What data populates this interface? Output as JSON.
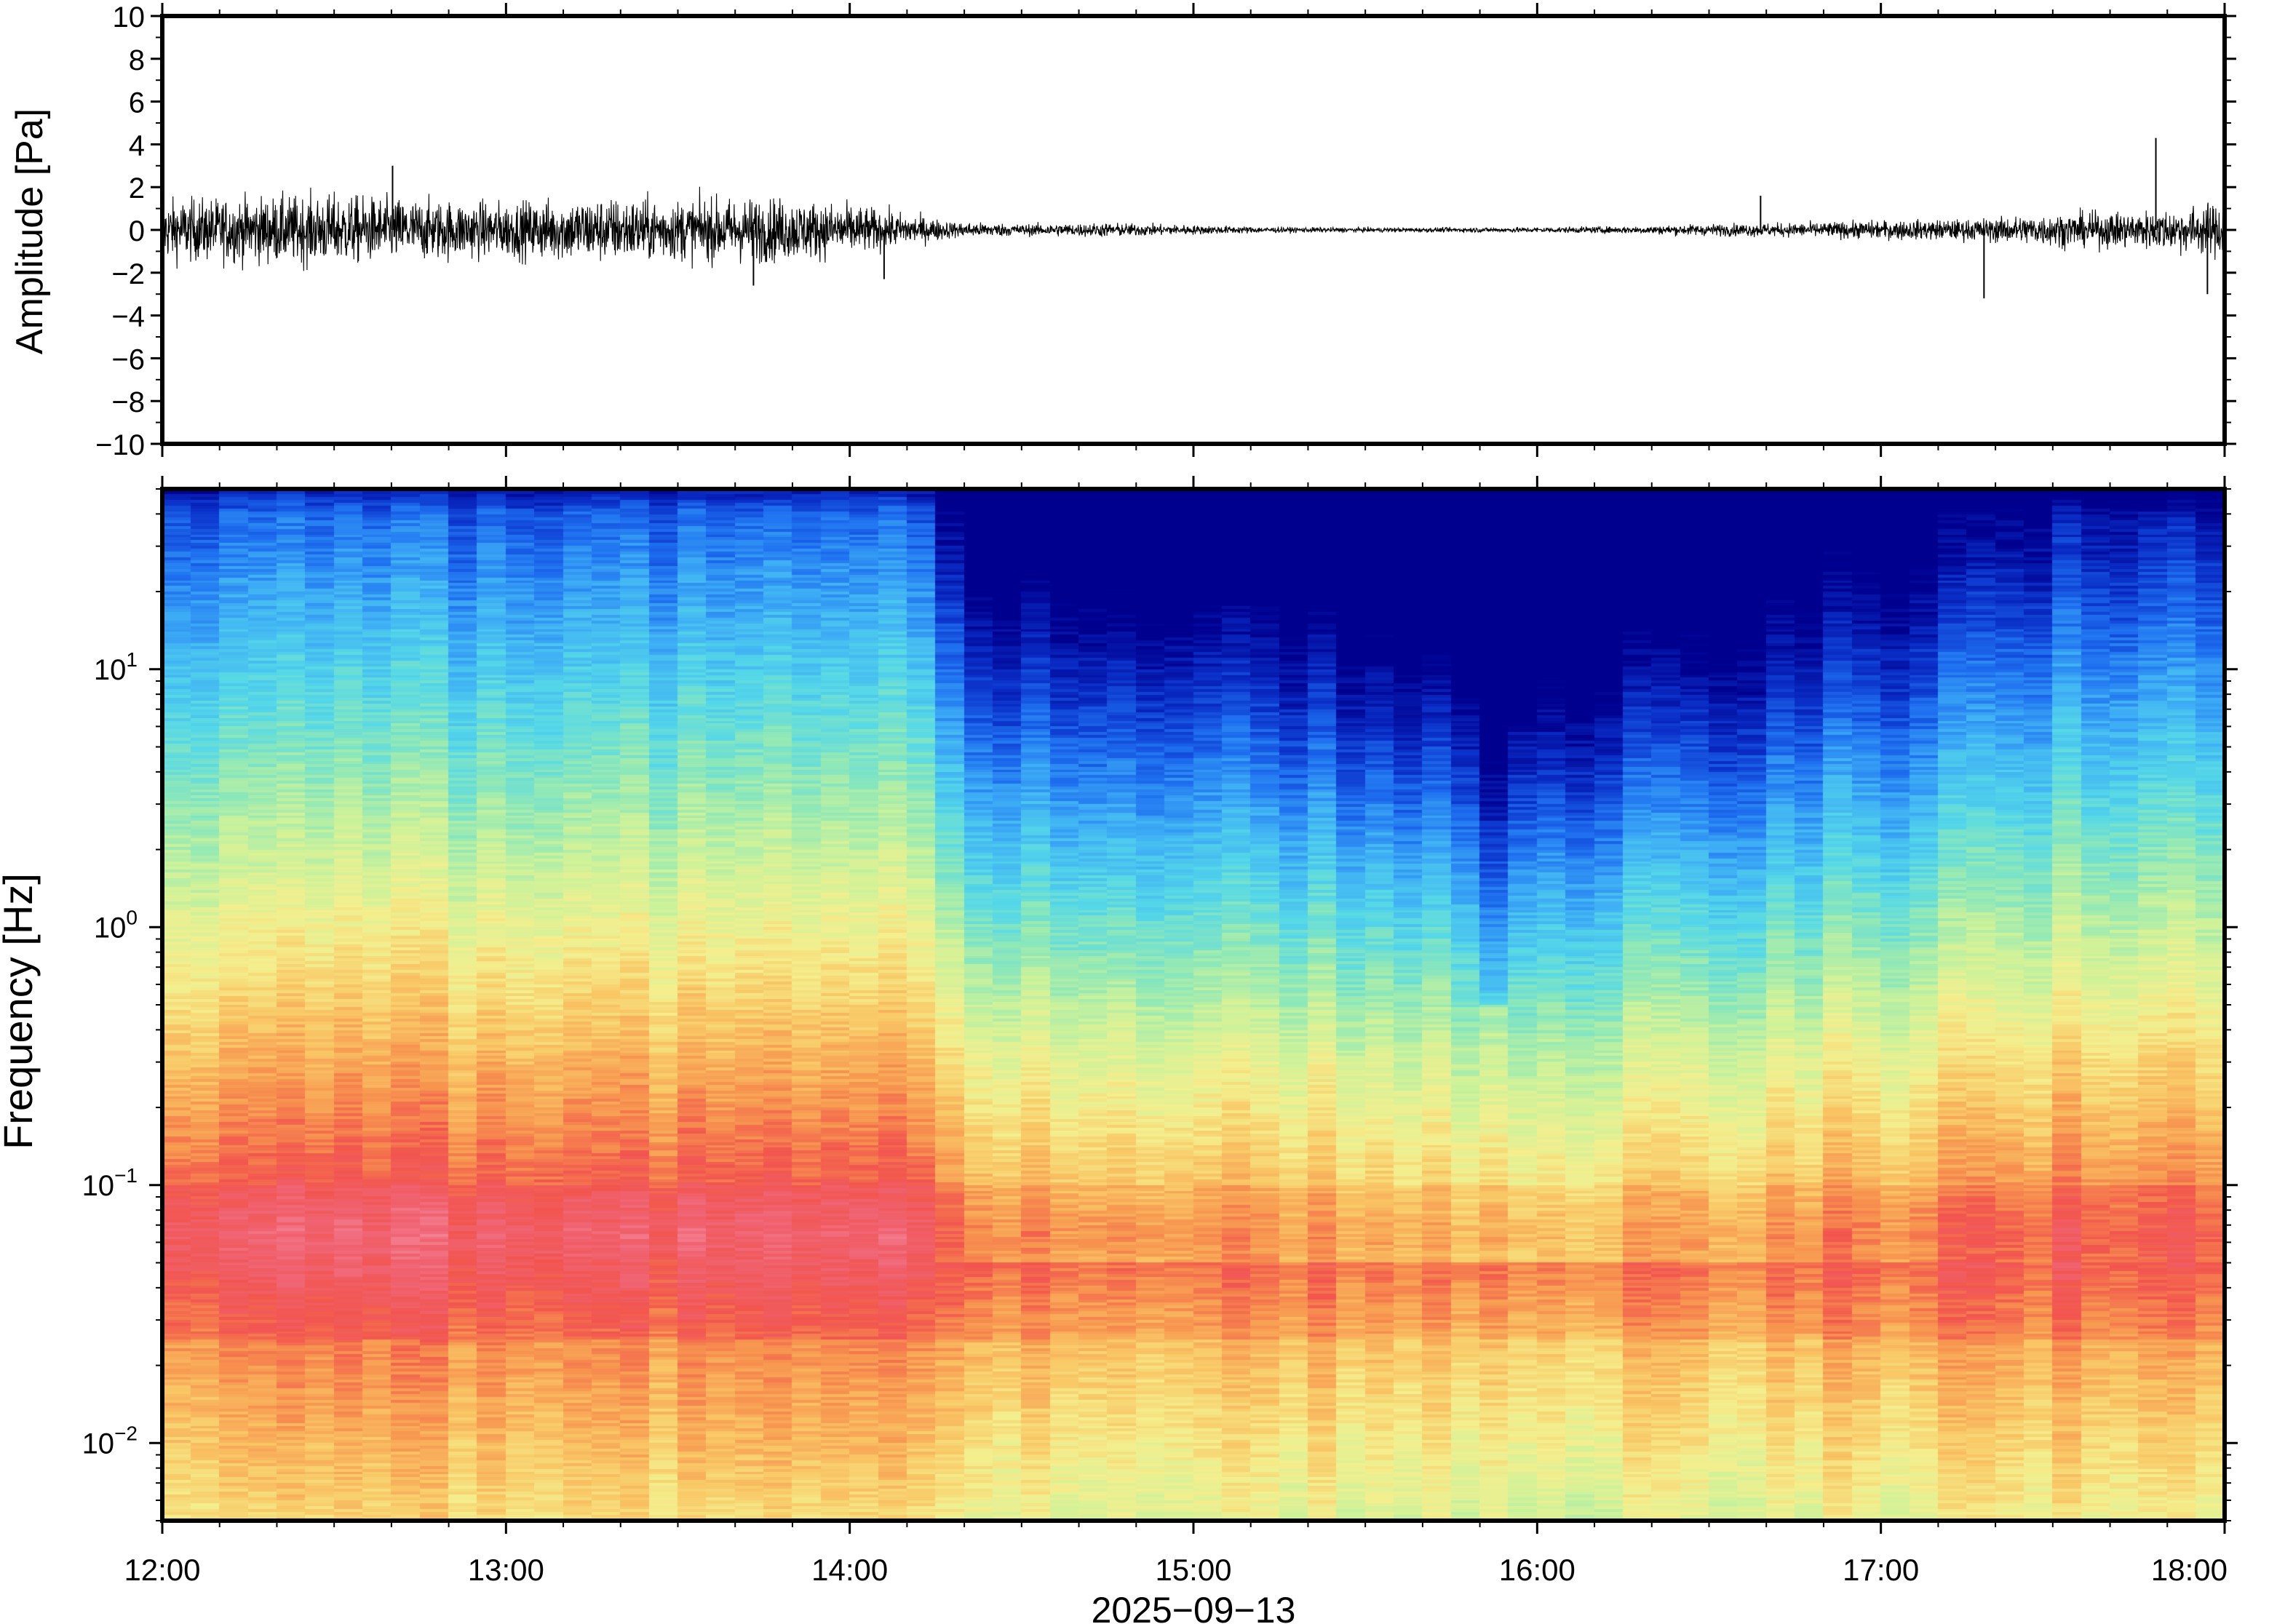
{
  "chart_data": [
    {
      "type": "line",
      "ylabel": "Amplitude [Pa]",
      "ylim": [
        -10,
        10
      ],
      "yticks": [
        10,
        8,
        6,
        4,
        2,
        0,
        -2,
        -4,
        -6,
        -8,
        -10
      ],
      "ytick_labels": [
        "10",
        "8",
        "6",
        "4",
        "2",
        "0",
        "−2",
        "−4",
        "−6",
        "−8",
        "−10"
      ],
      "x_range": [
        "12:00",
        "18:00"
      ],
      "grid": false,
      "series": [
        {
          "color": "#000000",
          "envelope_hours": [
            12.0,
            12.25,
            12.5,
            12.75,
            13.0,
            13.25,
            13.5,
            13.75,
            14.0,
            14.2,
            14.3,
            14.5,
            14.75,
            15.0,
            15.25,
            15.5,
            15.75,
            16.0,
            16.25,
            16.5,
            16.75,
            17.0,
            17.25,
            17.5,
            17.75,
            17.85,
            18.0
          ],
          "envelope_amplitude": [
            1.3,
            1.4,
            1.5,
            1.3,
            1.2,
            1.4,
            1.3,
            1.4,
            1.1,
            0.6,
            0.35,
            0.25,
            0.3,
            0.2,
            0.12,
            0.1,
            0.1,
            0.12,
            0.15,
            0.25,
            0.3,
            0.4,
            0.45,
            0.7,
            0.8,
            0.9,
            1.2
          ],
          "spikes": [
            {
              "hour": 12.67,
              "value": 3.0
            },
            {
              "hour": 13.72,
              "value": -2.6
            },
            {
              "hour": 14.1,
              "value": -2.3
            },
            {
              "hour": 16.65,
              "value": 1.6
            },
            {
              "hour": 17.3,
              "value": -3.2
            },
            {
              "hour": 17.8,
              "value": 4.3
            },
            {
              "hour": 17.95,
              "value": -3.0
            }
          ]
        }
      ]
    },
    {
      "type": "heatmap",
      "ylabel": "Frequency [Hz]",
      "xlabel": "2025−09−13",
      "y_scale": "log",
      "ylim": [
        0.005,
        50
      ],
      "yticks": [
        {
          "base": "10",
          "exp": "1",
          "value": 10
        },
        {
          "base": "10",
          "exp": "0",
          "value": 1
        },
        {
          "base": "10",
          "exp": "−1",
          "value": 0.1
        },
        {
          "base": "10",
          "exp": "−2",
          "value": 0.01
        }
      ],
      "xticks": [
        "12:00",
        "13:00",
        "14:00",
        "15:00",
        "16:00",
        "17:00",
        "18:00"
      ],
      "colormap": [
        "#00008f",
        "#0a2fc8",
        "#1e6ff0",
        "#3fb0f5",
        "#55d8e8",
        "#8ee8b8",
        "#cdf29a",
        "#f4ef8e",
        "#f9c866",
        "#f7944f",
        "#f2554e",
        "#f06474",
        "#f78fa0"
      ],
      "level_description": "power in dB relative to maximum: high at low frequencies, low at high frequencies",
      "grid": false
    }
  ]
}
